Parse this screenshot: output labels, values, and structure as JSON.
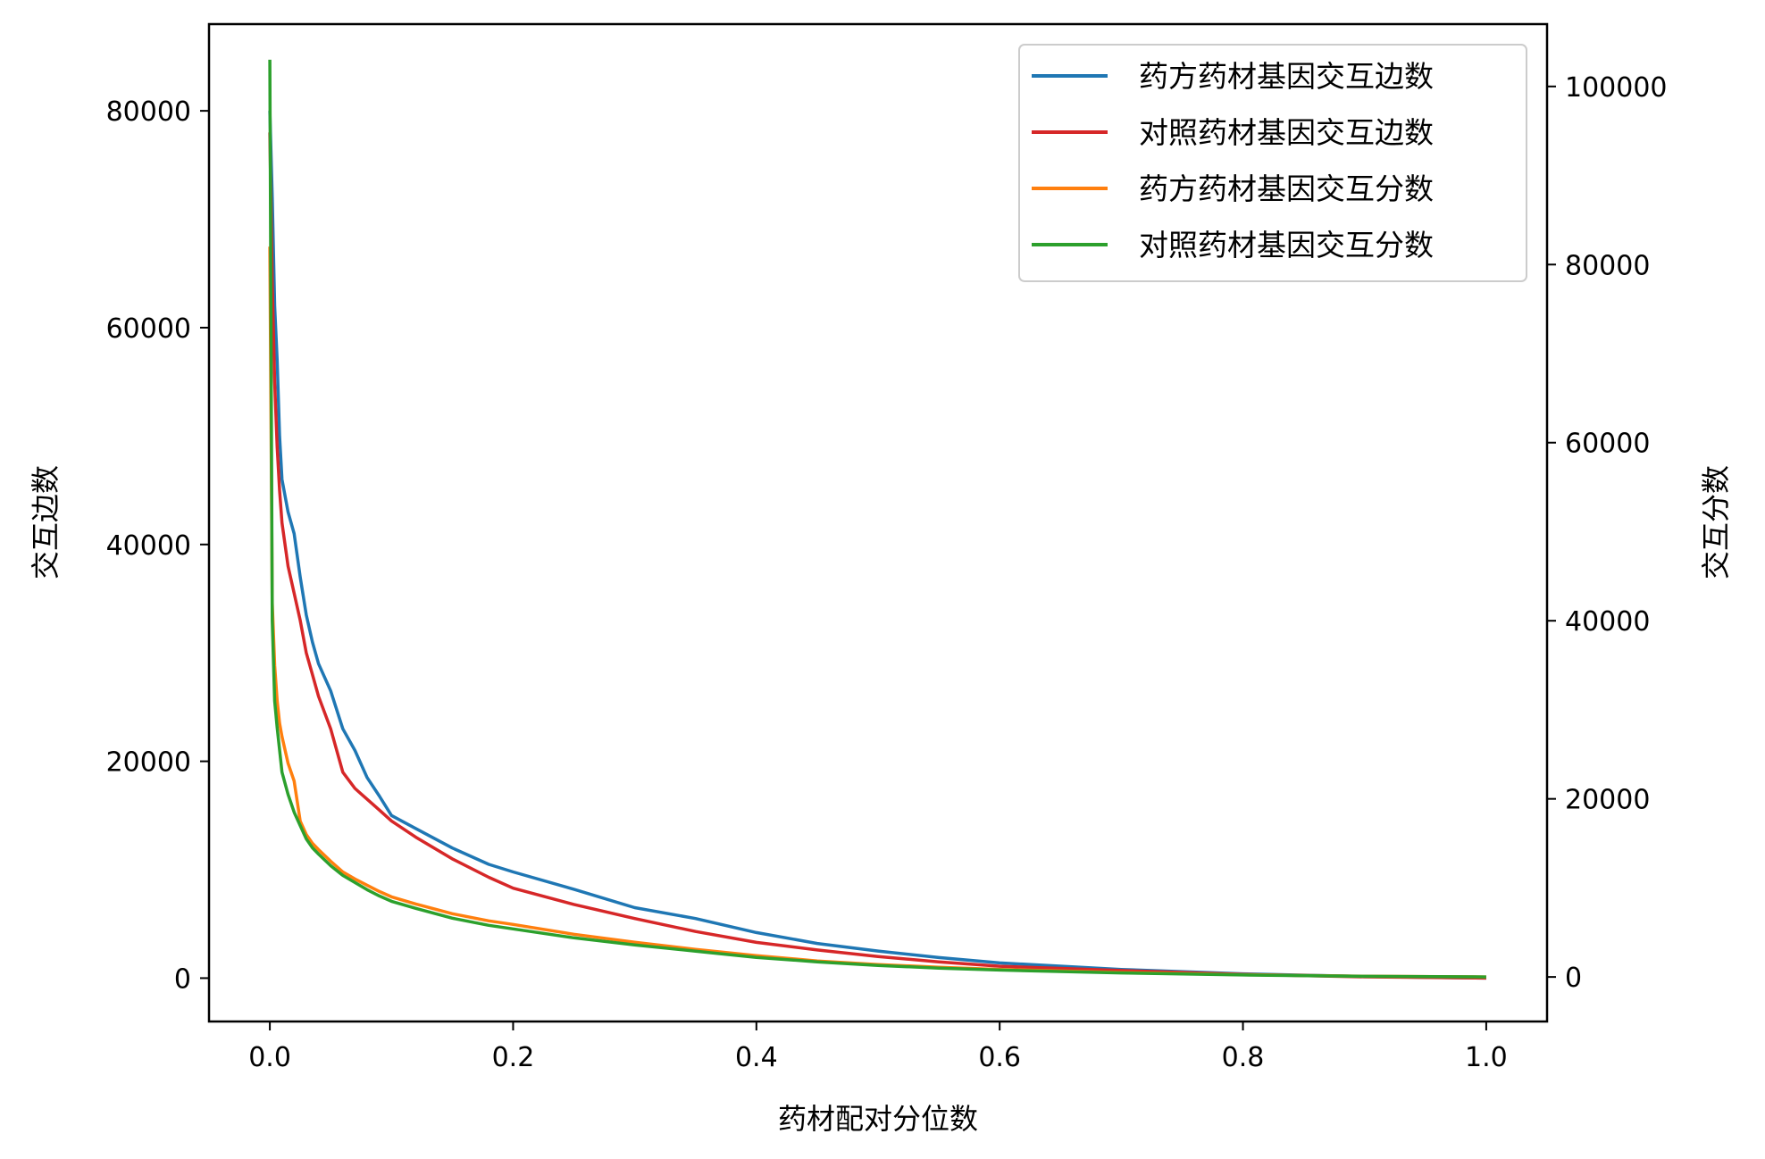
{
  "chart_data": {
    "type": "line",
    "title": "",
    "xlabel": "药材配对分位数",
    "ylabel_left": "交互边数",
    "ylabel_right": "交互分数",
    "xlim": [
      -0.05,
      1.05
    ],
    "ylim_left": [
      -4000,
      88000
    ],
    "ylim_right": [
      -5000,
      107000
    ],
    "x_ticks": [
      0.0,
      0.2,
      0.4,
      0.6,
      0.8,
      1.0
    ],
    "x_tick_labels": [
      "0.0",
      "0.2",
      "0.4",
      "0.6",
      "0.8",
      "1.0"
    ],
    "y_left_ticks": [
      0,
      20000,
      40000,
      60000,
      80000
    ],
    "y_left_tick_labels": [
      "0",
      "20000",
      "40000",
      "60000",
      "80000"
    ],
    "y_right_ticks": [
      0,
      20000,
      40000,
      60000,
      80000,
      100000
    ],
    "y_right_tick_labels": [
      "0",
      "20000",
      "40000",
      "60000",
      "80000",
      "100000"
    ],
    "legend_position": "top-right",
    "series": [
      {
        "name": "药方药材基因交互边数",
        "axis": "left",
        "color": "#1f77b4",
        "x": [
          0,
          0.002,
          0.004,
          0.006,
          0.008,
          0.01,
          0.015,
          0.02,
          0.025,
          0.03,
          0.035,
          0.04,
          0.05,
          0.06,
          0.07,
          0.08,
          0.09,
          0.1,
          0.12,
          0.15,
          0.18,
          0.2,
          0.25,
          0.3,
          0.35,
          0.4,
          0.45,
          0.5,
          0.55,
          0.6,
          0.7,
          0.8,
          0.9,
          1.0
        ],
        "values": [
          80000,
          72000,
          62000,
          57000,
          50000,
          46000,
          43000,
          41000,
          37000,
          33500,
          31000,
          29000,
          26500,
          23000,
          21000,
          18500,
          16800,
          15000,
          13800,
          12000,
          10500,
          9800,
          8200,
          6500,
          5500,
          4200,
          3200,
          2500,
          1900,
          1400,
          800,
          400,
          150,
          0
        ]
      },
      {
        "name": "对照药材基因交互边数",
        "axis": "left",
        "color": "#d62728",
        "x": [
          0,
          0.002,
          0.004,
          0.006,
          0.008,
          0.01,
          0.015,
          0.02,
          0.025,
          0.03,
          0.035,
          0.04,
          0.05,
          0.06,
          0.07,
          0.08,
          0.09,
          0.1,
          0.12,
          0.15,
          0.18,
          0.2,
          0.25,
          0.3,
          0.35,
          0.4,
          0.45,
          0.5,
          0.55,
          0.6,
          0.7,
          0.8,
          0.9,
          1.0
        ],
        "values": [
          78000,
          64000,
          55000,
          49000,
          45000,
          42000,
          38000,
          35500,
          33000,
          30000,
          28000,
          26000,
          23000,
          19000,
          17500,
          16500,
          15500,
          14500,
          13000,
          11000,
          9300,
          8300,
          6800,
          5500,
          4300,
          3300,
          2600,
          2000,
          1500,
          1100,
          700,
          350,
          120,
          0
        ]
      },
      {
        "name": "药方药材基因交互分数",
        "axis": "right",
        "color": "#ff7f0e",
        "x": [
          0,
          0.002,
          0.004,
          0.006,
          0.008,
          0.01,
          0.015,
          0.02,
          0.025,
          0.03,
          0.035,
          0.04,
          0.05,
          0.06,
          0.07,
          0.08,
          0.09,
          0.1,
          0.12,
          0.15,
          0.18,
          0.2,
          0.25,
          0.3,
          0.35,
          0.4,
          0.45,
          0.5,
          0.55,
          0.6,
          0.7,
          0.8,
          0.9,
          1.0
        ],
        "values": [
          82000,
          42000,
          35000,
          31000,
          28500,
          27000,
          24000,
          22000,
          17500,
          16000,
          15000,
          14300,
          13000,
          11800,
          11000,
          10300,
          9600,
          9000,
          8200,
          7100,
          6300,
          5900,
          4800,
          3900,
          3100,
          2400,
          1800,
          1400,
          1100,
          850,
          500,
          250,
          80,
          0
        ]
      },
      {
        "name": "对照药材基因交互分数",
        "axis": "right",
        "color": "#2ca02c",
        "x": [
          0,
          0.002,
          0.004,
          0.006,
          0.008,
          0.01,
          0.015,
          0.02,
          0.025,
          0.03,
          0.035,
          0.04,
          0.05,
          0.06,
          0.07,
          0.08,
          0.09,
          0.1,
          0.12,
          0.15,
          0.18,
          0.2,
          0.25,
          0.3,
          0.35,
          0.4,
          0.45,
          0.5,
          0.55,
          0.6,
          0.7,
          0.8,
          0.9,
          1.0
        ],
        "values": [
          103000,
          40000,
          31000,
          28000,
          25500,
          23000,
          20500,
          18500,
          17000,
          15500,
          14500,
          13800,
          12500,
          11400,
          10600,
          9800,
          9100,
          8500,
          7700,
          6600,
          5800,
          5400,
          4400,
          3600,
          2900,
          2200,
          1700,
          1300,
          1000,
          780,
          450,
          220,
          70,
          0
        ]
      }
    ]
  }
}
